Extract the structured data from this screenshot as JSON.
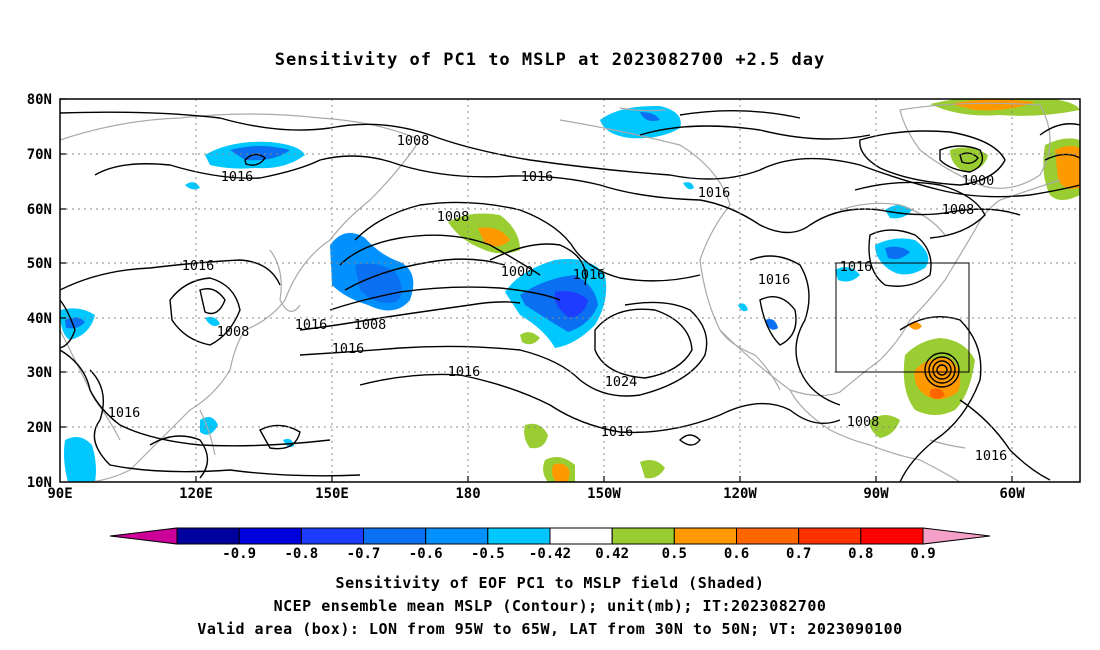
{
  "title": "Sensitivity of PC1 to MSLP at 2023082700 +2.5 day",
  "lat_labels": [
    "80N",
    "70N",
    "60N",
    "50N",
    "40N",
    "30N",
    "20N",
    "10N"
  ],
  "lon_labels": [
    "90E",
    "120E",
    "150E",
    "180",
    "150W",
    "120W",
    "90W",
    "60W"
  ],
  "contour_labels": [
    "1008",
    "1016",
    "1016",
    "1016",
    "1000",
    "1008",
    "1008",
    "1016",
    "1000",
    "1016",
    "1016",
    "1016",
    "1008",
    "1016",
    "1016",
    "1008",
    "1016",
    "1016",
    "1024",
    "1016",
    "1008",
    "1008",
    "1016",
    "1016"
  ],
  "colorbar": {
    "labels": [
      "-0.9",
      "-0.8",
      "-0.7",
      "-0.6",
      "-0.5",
      "-0.42",
      "0.42",
      "0.5",
      "0.6",
      "0.7",
      "0.8",
      "0.9"
    ],
    "colors": [
      "#cc0099",
      "#00009e",
      "#0000dc",
      "#1e3cff",
      "#0a6ff0",
      "#0091ff",
      "#00c8ff",
      "#ffffff",
      "#9acd32",
      "#ff9900",
      "#ff6600",
      "#ff3300",
      "#ff0000",
      "#f5a0c8"
    ]
  },
  "captions": [
    "Sensitivity of EOF PC1 to MSLP field (Shaded)",
    "NCEP ensemble mean MSLP (Contour); unit(mb); IT:2023082700",
    "Valid area (box): LON from 95W to 65W, LAT from 30N to 50N; VT: 2023090100"
  ],
  "valid_area": {
    "lon_from": "95W",
    "lon_to": "65W",
    "lat_from": "30N",
    "lat_to": "50N"
  }
}
